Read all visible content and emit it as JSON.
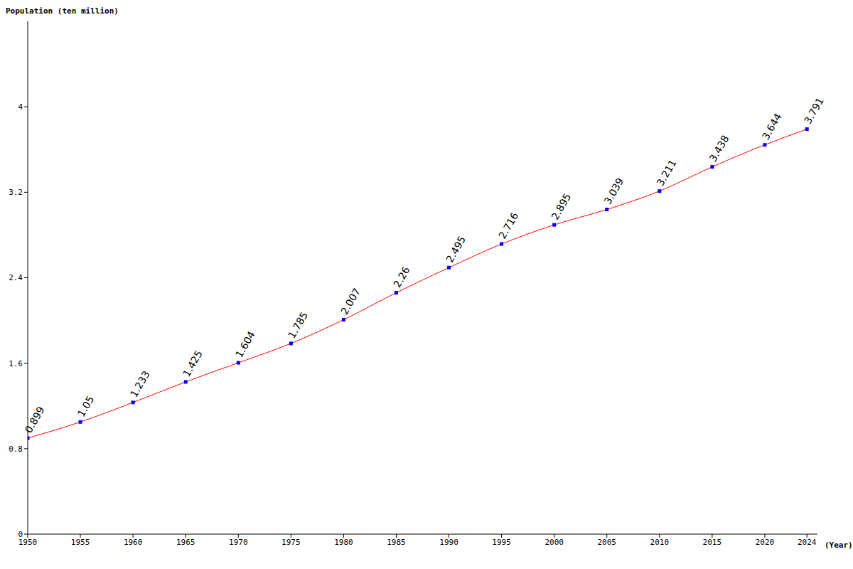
{
  "chart_data": {
    "type": "line",
    "y_label": "Population (ten million)",
    "x_label": "(Year)",
    "x": [
      1950,
      1955,
      1960,
      1965,
      1970,
      1975,
      1980,
      1985,
      1990,
      1995,
      2000,
      2005,
      2010,
      2015,
      2020,
      2024
    ],
    "values": [
      0.899,
      1.05,
      1.233,
      1.425,
      1.604,
      1.785,
      2.007,
      2.26,
      2.495,
      2.716,
      2.895,
      3.039,
      3.211,
      3.438,
      3.644,
      3.791
    ],
    "color": "#ff0000",
    "marker": "square",
    "marker_color": "#0000ff",
    "xlim": [
      1950,
      2025
    ],
    "xticks": [
      1950,
      1955,
      1960,
      1965,
      1970,
      1975,
      1980,
      1985,
      1990,
      1995,
      2000,
      2005,
      2010,
      2015,
      2020,
      2024
    ],
    "ylim": [
      0,
      4.8
    ],
    "yticks": [
      0,
      0.8,
      1.6,
      2.4,
      3.2,
      4
    ],
    "grid": false,
    "data_labels": true
  }
}
